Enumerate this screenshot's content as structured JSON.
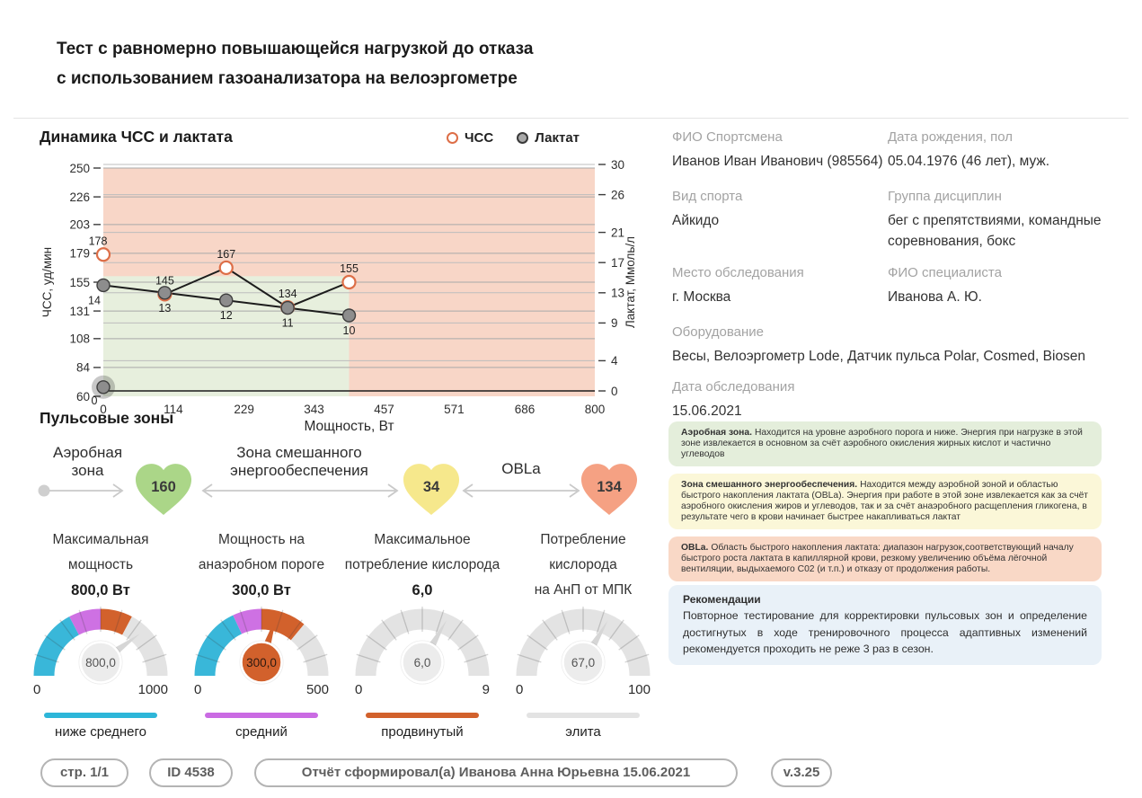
{
  "header": {
    "title_line1": "Тест с равномерно повышающейся нагрузкой до отказа",
    "title_line2": "с использованием газоанализатора на велоэргометре"
  },
  "chart_section": {
    "title": "Динамика ЧСС и лактата",
    "legend": [
      {
        "label": "ЧСС"
      },
      {
        "label": "Лактат"
      }
    ]
  },
  "chart_data": {
    "type": "line",
    "title": "Динамика ЧСС и лактата",
    "xlabel": "Мощность, Вт",
    "ylabel_left": "ЧСС, уд/мин",
    "ylabel_right": "Лактат, Ммоль/л",
    "xlim": [
      0,
      800
    ],
    "x_ticks": [
      0,
      114,
      229,
      343,
      457,
      571,
      686,
      800
    ],
    "ylim_left": [
      60,
      250
    ],
    "y_ticks_left": [
      250,
      226,
      203,
      179,
      155,
      131,
      108,
      84,
      60
    ],
    "ylim_right": [
      0,
      30
    ],
    "y_ticks_right": [
      30,
      26,
      21,
      17,
      13,
      9,
      4,
      0
    ],
    "grid": true,
    "legend_position": "top-right",
    "series": [
      {
        "name": "ЧСС",
        "axis": "left",
        "marker": "open-circle",
        "marker_color": "#dd6e47",
        "line_color": "#1c1c1c",
        "x": [
          0,
          100,
          200,
          300,
          400
        ],
        "y": [
          178,
          145,
          167,
          134,
          155
        ],
        "labels": [
          "178",
          "145",
          "167",
          "134",
          "155"
        ],
        "line_start_index": 1
      },
      {
        "name": "Лактат",
        "axis": "right",
        "marker": "filled-circle",
        "marker_color": "#8d8d8d",
        "line_color": "#1c1c1c",
        "x": [
          0,
          100,
          200,
          300,
          400
        ],
        "y": [
          14,
          13,
          12,
          11,
          10
        ],
        "labels": [
          "14",
          "13",
          "12",
          "11",
          "10"
        ]
      },
      {
        "name": "Лактат в покое",
        "axis": "right",
        "marker": "filled-circle",
        "marker_color": "#8d8d8d",
        "x": [
          0
        ],
        "y": [
          0.5
        ],
        "labels": [
          "0"
        ],
        "baseline_y": 0
      }
    ],
    "zones": [
      {
        "name": "зона OBLa",
        "color": "#f8d6c7",
        "x": [
          0,
          800
        ],
        "y_left": [
          60,
          250
        ]
      },
      {
        "name": "аэробная зона",
        "color": "#e7efdd",
        "x": [
          0,
          400
        ],
        "y_left": [
          60,
          160
        ]
      }
    ]
  },
  "pulse_zones": {
    "heading": "Пульсовые зоны",
    "zones": [
      {
        "label_line1": "Аэробная",
        "label_line2": "зона",
        "value": "160",
        "color": "#abd688"
      },
      {
        "label_line1": "Зона смешанного",
        "label_line2": "энергообеспечения",
        "value": "34",
        "color": "#f6e88c"
      },
      {
        "label_line1": "OBLa",
        "label_line2": "",
        "value": "134",
        "color": "#f5a183"
      }
    ]
  },
  "gauges": [
    {
      "title_line1": "Максимальная",
      "title_line2": "мощность",
      "title_line3": "",
      "value_label": "800,0 Вт",
      "value": 800,
      "min": 0,
      "max": 1000,
      "min_label": "0",
      "max_label": "1000",
      "center_label": "800,0",
      "needle_color": "#d6d6d6",
      "center_fill": "#ececec",
      "center_text_color": "#555555",
      "segments": [
        {
          "from": 0,
          "to": 0.345,
          "color": "#39b7d9"
        },
        {
          "from": 0.345,
          "to": 0.5,
          "color": "#ce71e3"
        },
        {
          "from": 0.5,
          "to": 0.655,
          "color": "#d2612c"
        },
        {
          "from": 0.655,
          "to": 1,
          "color": "#e3e3e3"
        }
      ],
      "bar_color": "#2db6d9",
      "level_label": "ниже среднего"
    },
    {
      "title_line1": "Мощность на",
      "title_line2": "анаэробном пороге",
      "title_line3": "",
      "value_label": "300,0 Вт",
      "value": 300,
      "min": 0,
      "max": 500,
      "min_label": "0",
      "max_label": "500",
      "center_label": "300,0",
      "needle_color": "#d2612c",
      "center_fill": "#d2612c",
      "center_text_color": "#2e1a10",
      "segments": [
        {
          "from": 0,
          "to": 0.36,
          "color": "#39b7d9"
        },
        {
          "from": 0.36,
          "to": 0.5,
          "color": "#ce71e3"
        },
        {
          "from": 0.5,
          "to": 0.72,
          "color": "#d2612c"
        },
        {
          "from": 0.72,
          "to": 1,
          "color": "#e3e3e3"
        }
      ],
      "bar_color": "#ca6be3",
      "level_label": "средний"
    },
    {
      "title_line1": "Максимальное",
      "title_line2": "потребление кислорода",
      "title_line3": "",
      "value_label": "6,0",
      "value": 6,
      "min": 0,
      "max": 9,
      "min_label": "0",
      "max_label": "9",
      "center_label": "6,0",
      "needle_color": "#d6d6d6",
      "center_fill": "#ececec",
      "center_text_color": "#555555",
      "segments": [
        {
          "from": 0,
          "to": 1,
          "color": "#e3e3e3"
        }
      ],
      "bar_color": "#d2612c",
      "level_label": "продвинутый"
    },
    {
      "title_line1": "Потребление",
      "title_line2": "кислорода",
      "title_line3": "на АнП от МПК",
      "value_label": "",
      "value": 67,
      "min": 0,
      "max": 100,
      "min_label": "0",
      "max_label": "100",
      "center_label": "67,0",
      "needle_color": "#d6d6d6",
      "center_fill": "#ececec",
      "center_text_color": "#555555",
      "segments": [
        {
          "from": 0,
          "to": 1,
          "color": "#e3e3e3"
        }
      ],
      "bar_color": "#e3e3e3",
      "level_label": "элита"
    }
  ],
  "athlete": {
    "fio_label": "ФИО Спортсмена",
    "fio": "Иванов Иван Иванович (985564)",
    "birth_label": "Дата рождения, пол",
    "birth": "05.04.1976 (46 лет), муж.",
    "sport_label": "Вид спорта",
    "sport": "Айкидо",
    "group_label": "Группа дисциплин",
    "group": "бег с препятствиями, командные соревнования, бокс",
    "place_label": "Место обследования",
    "place": "г. Москва",
    "specialist_label": "ФИО специалиста",
    "specialist": "Иванова А. Ю.",
    "equipment_label": "Оборудование",
    "equipment": "Весы, Велоэргометр Lode, Датчик пульса Polar, Cosmed, Biosen",
    "date_label": "Дата обследования",
    "date": "15.06.2021"
  },
  "info_boxes": [
    {
      "title": "Аэробная зона.",
      "bg": "#e4eedb",
      "text": "Находится на уровне аэробного порога и ниже. Энергия при нагрузке в этой зоне извлекается в основном за счёт аэробного окисления жирных кислот и частично углеводов"
    },
    {
      "title": "Зона смешанного энергообеспечения.",
      "bg": "#fbf7d8",
      "text": "Находится между аэробной зоной и областью быстрого накопления лактата (OBLa). Энергия при работе в этой зоне извлекается как за счёт аэробного окисления жиров и углеводов, так и за счёт анаэробного расщепления гликогена, в результате чего в крови начинает быстрее накапливаться лактат"
    },
    {
      "title": "OBLa.",
      "bg": "#f9d8c6",
      "text": "Область быстрого накопления лактата: диапазон нагрузок,соответствующий началу быстрого роста лактата в капиллярной крови, резкому увеличению объёма лёгочной вентиляции, выдыхаемого C02 (и т.п.) и отказу от продолжения работы."
    }
  ],
  "recommendations": {
    "title": "Рекомендации",
    "bg": "#e9f1f8",
    "text": "Повторное тестирование для корректировки пульсовых зон и определение достигнутых в ходе тренировочного процесса адаптивных изменений рекомендуется проходить не реже 3 раз в сезон."
  },
  "footer": {
    "page": "стр. 1/1",
    "report_id": "ID 4538",
    "generated": "Отчёт сформировал(а) Иванова Анна Юрьевна 15.06.2021",
    "version": "v.3.25"
  }
}
